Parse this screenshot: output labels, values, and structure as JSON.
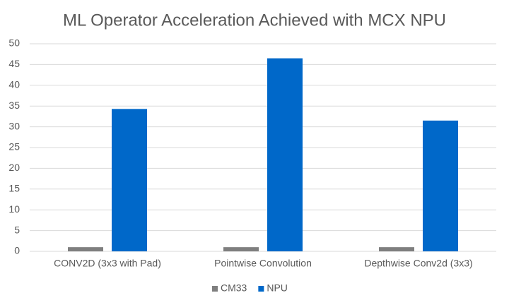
{
  "chart_data": {
    "type": "bar",
    "title": "ML Operator Acceleration Achieved with MCX NPU",
    "categories": [
      "CONV2D (3x3 with Pad)",
      "Pointwise Convolution",
      "Depthwise Conv2d (3x3)"
    ],
    "series": [
      {
        "name": "CM33",
        "color": "#7f7f7f",
        "values": [
          1,
          1,
          1
        ]
      },
      {
        "name": "NPU",
        "color": "#0068c9",
        "values": [
          34.3,
          46.5,
          31.5
        ]
      }
    ],
    "ylim": [
      0,
      50
    ],
    "yticks": [
      0,
      5,
      10,
      15,
      20,
      25,
      30,
      35,
      40,
      45,
      50
    ],
    "grid": true
  }
}
